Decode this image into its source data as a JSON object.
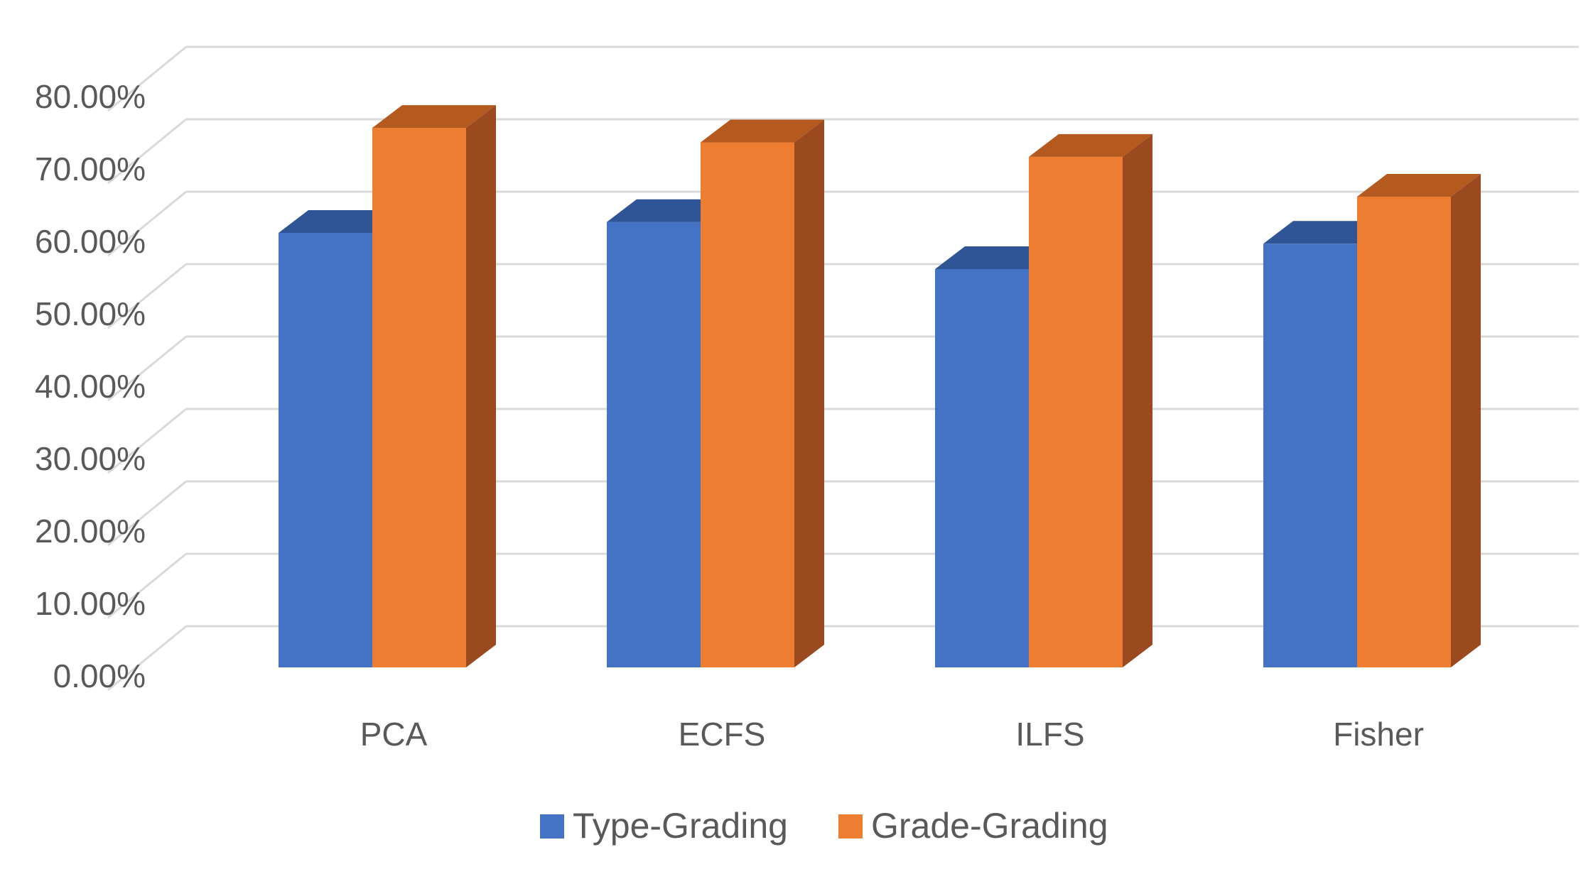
{
  "chart_data": {
    "type": "bar",
    "style": "3d-clustered-column",
    "categories": [
      "PCA",
      "ECFS",
      "ILFS",
      "Fisher"
    ],
    "series": [
      {
        "name": "Type-Grading",
        "values": [
          60.0,
          61.5,
          55.0,
          58.5
        ],
        "color": "#4472C4",
        "top_color": "#2F5597"
      },
      {
        "name": "Grade-Grading",
        "values": [
          74.5,
          72.5,
          70.5,
          65.0
        ],
        "color": "#ED7D31",
        "top_color": "#B45A1F",
        "side_color": "#9A4A1E"
      }
    ],
    "y_ticks": [
      "0.00%",
      "10.00%",
      "20.00%",
      "30.00%",
      "40.00%",
      "50.00%",
      "60.00%",
      "70.00%",
      "80.00%"
    ],
    "ylim": [
      0,
      80
    ],
    "grid": true,
    "legend_position": "bottom",
    "title": "",
    "xlabel": "",
    "ylabel": ""
  }
}
